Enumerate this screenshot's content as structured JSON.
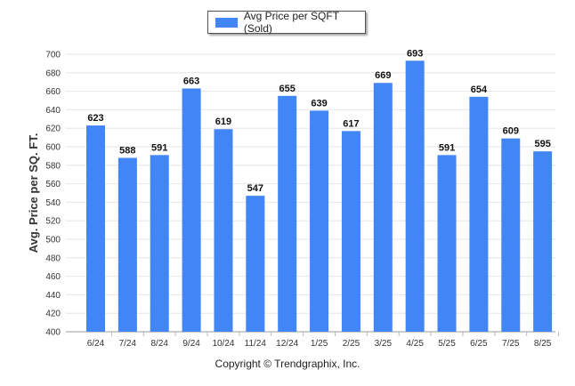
{
  "chart_data": {
    "type": "bar",
    "categories": [
      "6/24",
      "7/24",
      "8/24",
      "9/24",
      "10/24",
      "11/24",
      "12/24",
      "1/25",
      "2/25",
      "3/25",
      "4/25",
      "5/25",
      "6/25",
      "7/25",
      "8/25"
    ],
    "series": [
      {
        "name": "Avg Price per SQFT (Sold)",
        "values": [
          623,
          588,
          591,
          663,
          619,
          547,
          655,
          639,
          617,
          669,
          693,
          591,
          654,
          609,
          595
        ]
      }
    ],
    "ylabel": "Avg. Price per SQ. FT.",
    "xlabel": "",
    "ylim": [
      400,
      700
    ],
    "yticks": [
      400,
      420,
      440,
      460,
      480,
      500,
      520,
      540,
      560,
      580,
      600,
      620,
      640,
      660,
      680,
      700
    ],
    "grid": true,
    "legend_position": "top-center",
    "bar_color": "#4285f4"
  },
  "footer": {
    "copyright": "Copyright © Trendgraphix, Inc."
  }
}
